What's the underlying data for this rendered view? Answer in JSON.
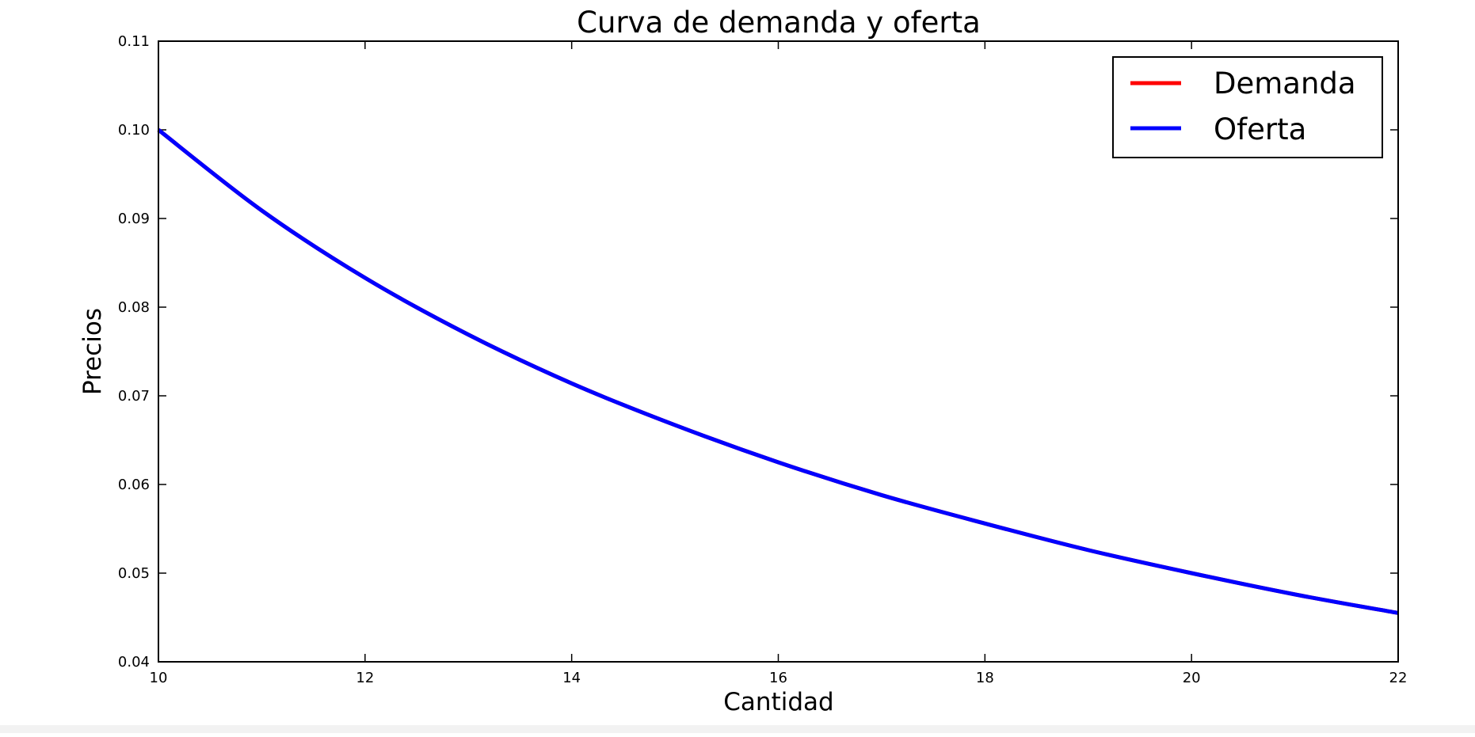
{
  "chart_data": {
    "type": "line",
    "title": "Curva de demanda y oferta",
    "xlabel": "Cantidad",
    "ylabel": "Precios",
    "xlim": [
      10,
      22
    ],
    "ylim": [
      0.04,
      0.11
    ],
    "xticks": [
      "10",
      "12",
      "14",
      "16",
      "18",
      "20",
      "22"
    ],
    "yticks": [
      "0.04",
      "0.05",
      "0.06",
      "0.07",
      "0.08",
      "0.09",
      "0.10",
      "0.11"
    ],
    "grid": false,
    "legend": {
      "position": "top-right",
      "entries": [
        "Demanda",
        "Oferta"
      ]
    },
    "series": [
      {
        "name": "Demanda",
        "color": "#ff0000",
        "x": [
          10,
          11,
          12,
          13,
          14,
          15,
          16,
          17,
          18,
          19,
          20,
          21,
          22
        ],
        "y": [
          0.1,
          0.0909,
          0.0833,
          0.0769,
          0.0714,
          0.0667,
          0.0625,
          0.0588,
          0.0556,
          0.0526,
          0.05,
          0.0476,
          0.0455
        ]
      },
      {
        "name": "Oferta",
        "color": "#0000ff",
        "x": [
          10,
          11,
          12,
          13,
          14,
          15,
          16,
          17,
          18,
          19,
          20,
          21,
          22
        ],
        "y": [
          0.1,
          0.0909,
          0.0833,
          0.0769,
          0.0714,
          0.0667,
          0.0625,
          0.0588,
          0.0556,
          0.0526,
          0.05,
          0.0476,
          0.0455
        ]
      }
    ]
  }
}
